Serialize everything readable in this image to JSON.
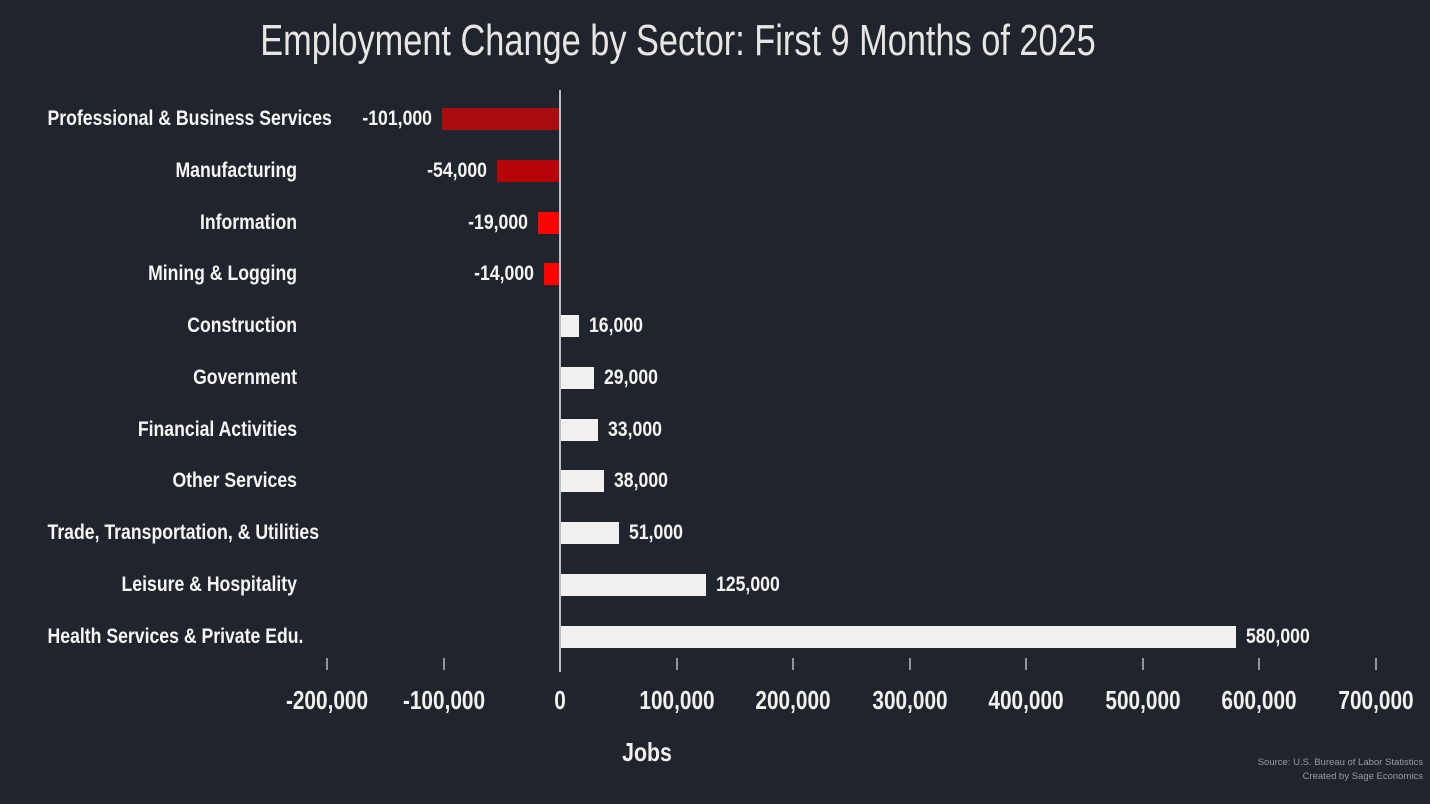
{
  "page": {
    "background_color": "#20242c"
  },
  "chart_data": {
    "type": "bar",
    "orientation": "horizontal",
    "title": "Employment Change by Sector: First 9 Months of 2025",
    "xlabel": "Jobs",
    "xlim": [
      -200000,
      700000
    ],
    "grid": false,
    "legend": "none",
    "categories": [
      "Professional & Business Services",
      "Manufacturing",
      "Information",
      "Mining & Logging",
      "Construction",
      "Government",
      "Financial Activities",
      "Other Services",
      "Trade, Transportation, & Utilities",
      "Leisure & Hospitality",
      "Health Services & Private Edu."
    ],
    "values": [
      -101000,
      -54000,
      -19000,
      -14000,
      16000,
      29000,
      33000,
      38000,
      51000,
      125000,
      580000
    ],
    "value_labels": [
      "-101,000",
      "-54,000",
      "-19,000",
      "-14,000",
      "16,000",
      "29,000",
      "33,000",
      "38,000",
      "51,000",
      "125,000",
      "580,000"
    ],
    "bar_colors": [
      "#aa0c10",
      "#b60408",
      "#fa0502",
      "#fd0400",
      "#f2f1ef",
      "#f2f1ef",
      "#f2f1ef",
      "#f2f1ef",
      "#f2f1ef",
      "#f2f1ef",
      "#f2f1ef"
    ],
    "negative_bar_colors": [
      "#aa0c10",
      "#b60408",
      "#fa0502",
      "#fd0400"
    ],
    "positive_bar_color": "#f2f1ef",
    "axis_color": "#b9bcc1",
    "tick_color": "#8f959d",
    "xticks": [
      -200000,
      -100000,
      0,
      100000,
      200000,
      300000,
      400000,
      500000,
      600000,
      700000
    ],
    "xtick_labels": [
      "-200,000",
      "-100,000",
      "0",
      "100,000",
      "200,000",
      "300,000",
      "400,000",
      "500,000",
      "600,000",
      "700,000"
    ]
  },
  "footer": {
    "source": "Source: U.S. Bureau of Labor Statistics",
    "credit": "Created by Sage Economics"
  }
}
